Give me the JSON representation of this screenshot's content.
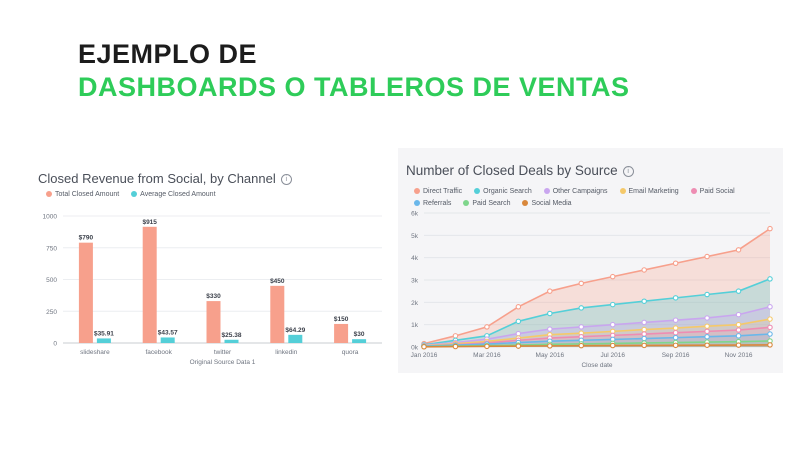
{
  "headline": {
    "line1": "EJEMPLO DE",
    "line2": "DASHBOARDS O TABLEROS DE VENTAS"
  },
  "colors": {
    "green": "#2ecc59",
    "total": "#f7a08c",
    "average": "#54cfd8",
    "direct_traffic": "#f7a08c",
    "organic_search": "#54cfd8",
    "other_campaigns": "#c9a6ef",
    "email_marketing": "#f5c96a",
    "paid_social": "#ee8db3",
    "referrals": "#6ab7ea",
    "paid_search": "#7fd68c",
    "social_media": "#d9883c"
  },
  "chart_data": [
    {
      "type": "bar",
      "title": "Closed Revenue from Social, by Channel",
      "info_icon": "i",
      "categories": [
        "slideshare",
        "facebook",
        "twitter",
        "linkedin",
        "quora"
      ],
      "series": [
        {
          "name": "Total Closed Amount",
          "values": [
            790,
            915,
            330,
            450,
            150
          ],
          "labels": [
            "$790",
            "$915",
            "$330",
            "$450",
            "$150"
          ]
        },
        {
          "name": "Average Closed Amount",
          "values": [
            35.91,
            43.57,
            25.38,
            64.29,
            30
          ],
          "labels": [
            "$35.91",
            "$43.57",
            "$25.38",
            "$64.29",
            "$30"
          ]
        }
      ],
      "yticks": [
        "0",
        "250",
        "500",
        "750",
        "1000"
      ],
      "ylim": [
        0,
        1000
      ],
      "xlabel": "Original Source Data 1",
      "ylabel": ""
    },
    {
      "type": "area",
      "title": "Number of Closed Deals by Source",
      "info_icon": "i",
      "months": 12,
      "x_ticks": [
        "Jan 2016",
        "Mar 2016",
        "May 2016",
        "Jul 2016",
        "Sep 2016",
        "Nov 2016"
      ],
      "x_tick_index": [
        0,
        2,
        4,
        6,
        8,
        10
      ],
      "xlabel": "Close date",
      "yticks": [
        "0k",
        "1k",
        "2k",
        "3k",
        "4k",
        "5k",
        "6k"
      ],
      "ylim": [
        0,
        6000
      ],
      "series": [
        {
          "name": "Direct Traffic",
          "values": [
            150,
            500,
            900,
            1800,
            2500,
            2850,
            3150,
            3450,
            3750,
            4050,
            4350,
            5300
          ]
        },
        {
          "name": "Organic Search",
          "values": [
            100,
            300,
            500,
            1150,
            1500,
            1750,
            1900,
            2050,
            2200,
            2350,
            2500,
            3050
          ]
        },
        {
          "name": "Other Campaigns",
          "values": [
            80,
            200,
            350,
            600,
            800,
            900,
            1000,
            1100,
            1200,
            1300,
            1450,
            1800
          ]
        },
        {
          "name": "Email Marketing",
          "values": [
            60,
            150,
            250,
            400,
            550,
            620,
            700,
            780,
            850,
            930,
            1000,
            1250
          ]
        },
        {
          "name": "Paid Social",
          "values": [
            50,
            100,
            180,
            300,
            400,
            460,
            520,
            580,
            640,
            700,
            760,
            880
          ]
        },
        {
          "name": "Referrals",
          "values": [
            40,
            80,
            130,
            200,
            260,
            300,
            340,
            380,
            420,
            460,
            500,
            580
          ]
        },
        {
          "name": "Paid Search",
          "values": [
            20,
            40,
            60,
            90,
            120,
            140,
            160,
            180,
            200,
            220,
            240,
            270
          ]
        },
        {
          "name": "Social Media",
          "values": [
            10,
            20,
            30,
            40,
            50,
            60,
            65,
            70,
            75,
            80,
            85,
            95
          ]
        }
      ]
    }
  ]
}
